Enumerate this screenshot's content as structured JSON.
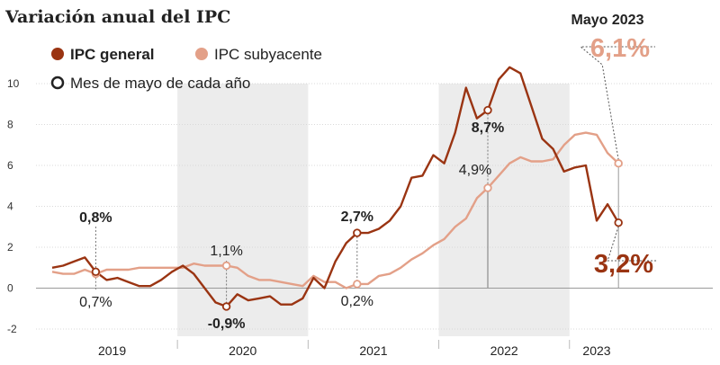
{
  "title": "Variación anual del IPC",
  "legend": {
    "general": "IPC general",
    "subyacente": "IPC subyacente",
    "mayo": "Mes de mayo de cada año"
  },
  "colors": {
    "general": "#9a3412",
    "subyacente": "#e3a088",
    "band": "#ececec",
    "grid": "#d9d9d9"
  },
  "chart_data": {
    "type": "line",
    "title": "Variación anual del IPC",
    "xlabel": "",
    "ylabel": "",
    "ylim": [
      -2,
      10
    ],
    "y_ticks": [
      "-2",
      "0",
      "2",
      "4",
      "6",
      "8",
      "10"
    ],
    "years": [
      "2019",
      "2020",
      "2021",
      "2022",
      "2023"
    ],
    "x": [
      "2019-01",
      "2019-02",
      "2019-03",
      "2019-04",
      "2019-05",
      "2019-06",
      "2019-07",
      "2019-08",
      "2019-09",
      "2019-10",
      "2019-11",
      "2019-12",
      "2020-01",
      "2020-02",
      "2020-03",
      "2020-04",
      "2020-05",
      "2020-06",
      "2020-07",
      "2020-08",
      "2020-09",
      "2020-10",
      "2020-11",
      "2020-12",
      "2021-01",
      "2021-02",
      "2021-03",
      "2021-04",
      "2021-05",
      "2021-06",
      "2021-07",
      "2021-08",
      "2021-09",
      "2021-10",
      "2021-11",
      "2021-12",
      "2022-01",
      "2022-02",
      "2022-03",
      "2022-04",
      "2022-05",
      "2022-06",
      "2022-07",
      "2022-08",
      "2022-09",
      "2022-10",
      "2022-11",
      "2022-12",
      "2023-01",
      "2023-02",
      "2023-03",
      "2023-04",
      "2023-05"
    ],
    "grid": true,
    "legend_position": "top-left",
    "series": [
      {
        "name": "IPC general",
        "values": [
          1.0,
          1.1,
          1.3,
          1.5,
          0.8,
          0.4,
          0.5,
          0.3,
          0.1,
          0.1,
          0.4,
          0.8,
          1.1,
          0.7,
          0.0,
          -0.7,
          -0.9,
          -0.3,
          -0.6,
          -0.5,
          -0.4,
          -0.8,
          -0.8,
          -0.5,
          0.5,
          0.0,
          1.3,
          2.2,
          2.7,
          2.7,
          2.9,
          3.3,
          4.0,
          5.4,
          5.5,
          6.5,
          6.1,
          7.6,
          9.8,
          8.3,
          8.7,
          10.2,
          10.8,
          10.5,
          8.9,
          7.3,
          6.8,
          5.7,
          5.9,
          6.0,
          3.3,
          4.1,
          3.2
        ]
      },
      {
        "name": "IPC subyacente",
        "values": [
          0.8,
          0.7,
          0.7,
          0.9,
          0.7,
          0.9,
          0.9,
          0.9,
          1.0,
          1.0,
          1.0,
          1.0,
          1.0,
          1.2,
          1.1,
          1.1,
          1.1,
          1.0,
          0.6,
          0.4,
          0.4,
          0.3,
          0.2,
          0.1,
          0.6,
          0.3,
          0.3,
          0.0,
          0.2,
          0.2,
          0.6,
          0.7,
          1.0,
          1.4,
          1.7,
          2.1,
          2.4,
          3.0,
          3.4,
          4.4,
          4.9,
          5.5,
          6.1,
          6.4,
          6.2,
          6.2,
          6.3,
          7.0,
          7.5,
          7.6,
          7.5,
          6.6,
          6.1
        ]
      }
    ],
    "may_markers": [
      {
        "year": "2019",
        "general": "0,8%",
        "subyacente": "0,7%"
      },
      {
        "year": "2020",
        "general": "-0,9%",
        "subyacente": "1,1%"
      },
      {
        "year": "2021",
        "general": "2,7%",
        "subyacente": "0,2%"
      },
      {
        "year": "2022",
        "general": "8,7%",
        "subyacente": "4,9%"
      },
      {
        "year": "2023",
        "general": "3,2%",
        "subyacente": "6,1%"
      }
    ],
    "highlight": {
      "label": "Mayo 2023",
      "subyacente": "6,1%",
      "general": "3,2%"
    }
  }
}
